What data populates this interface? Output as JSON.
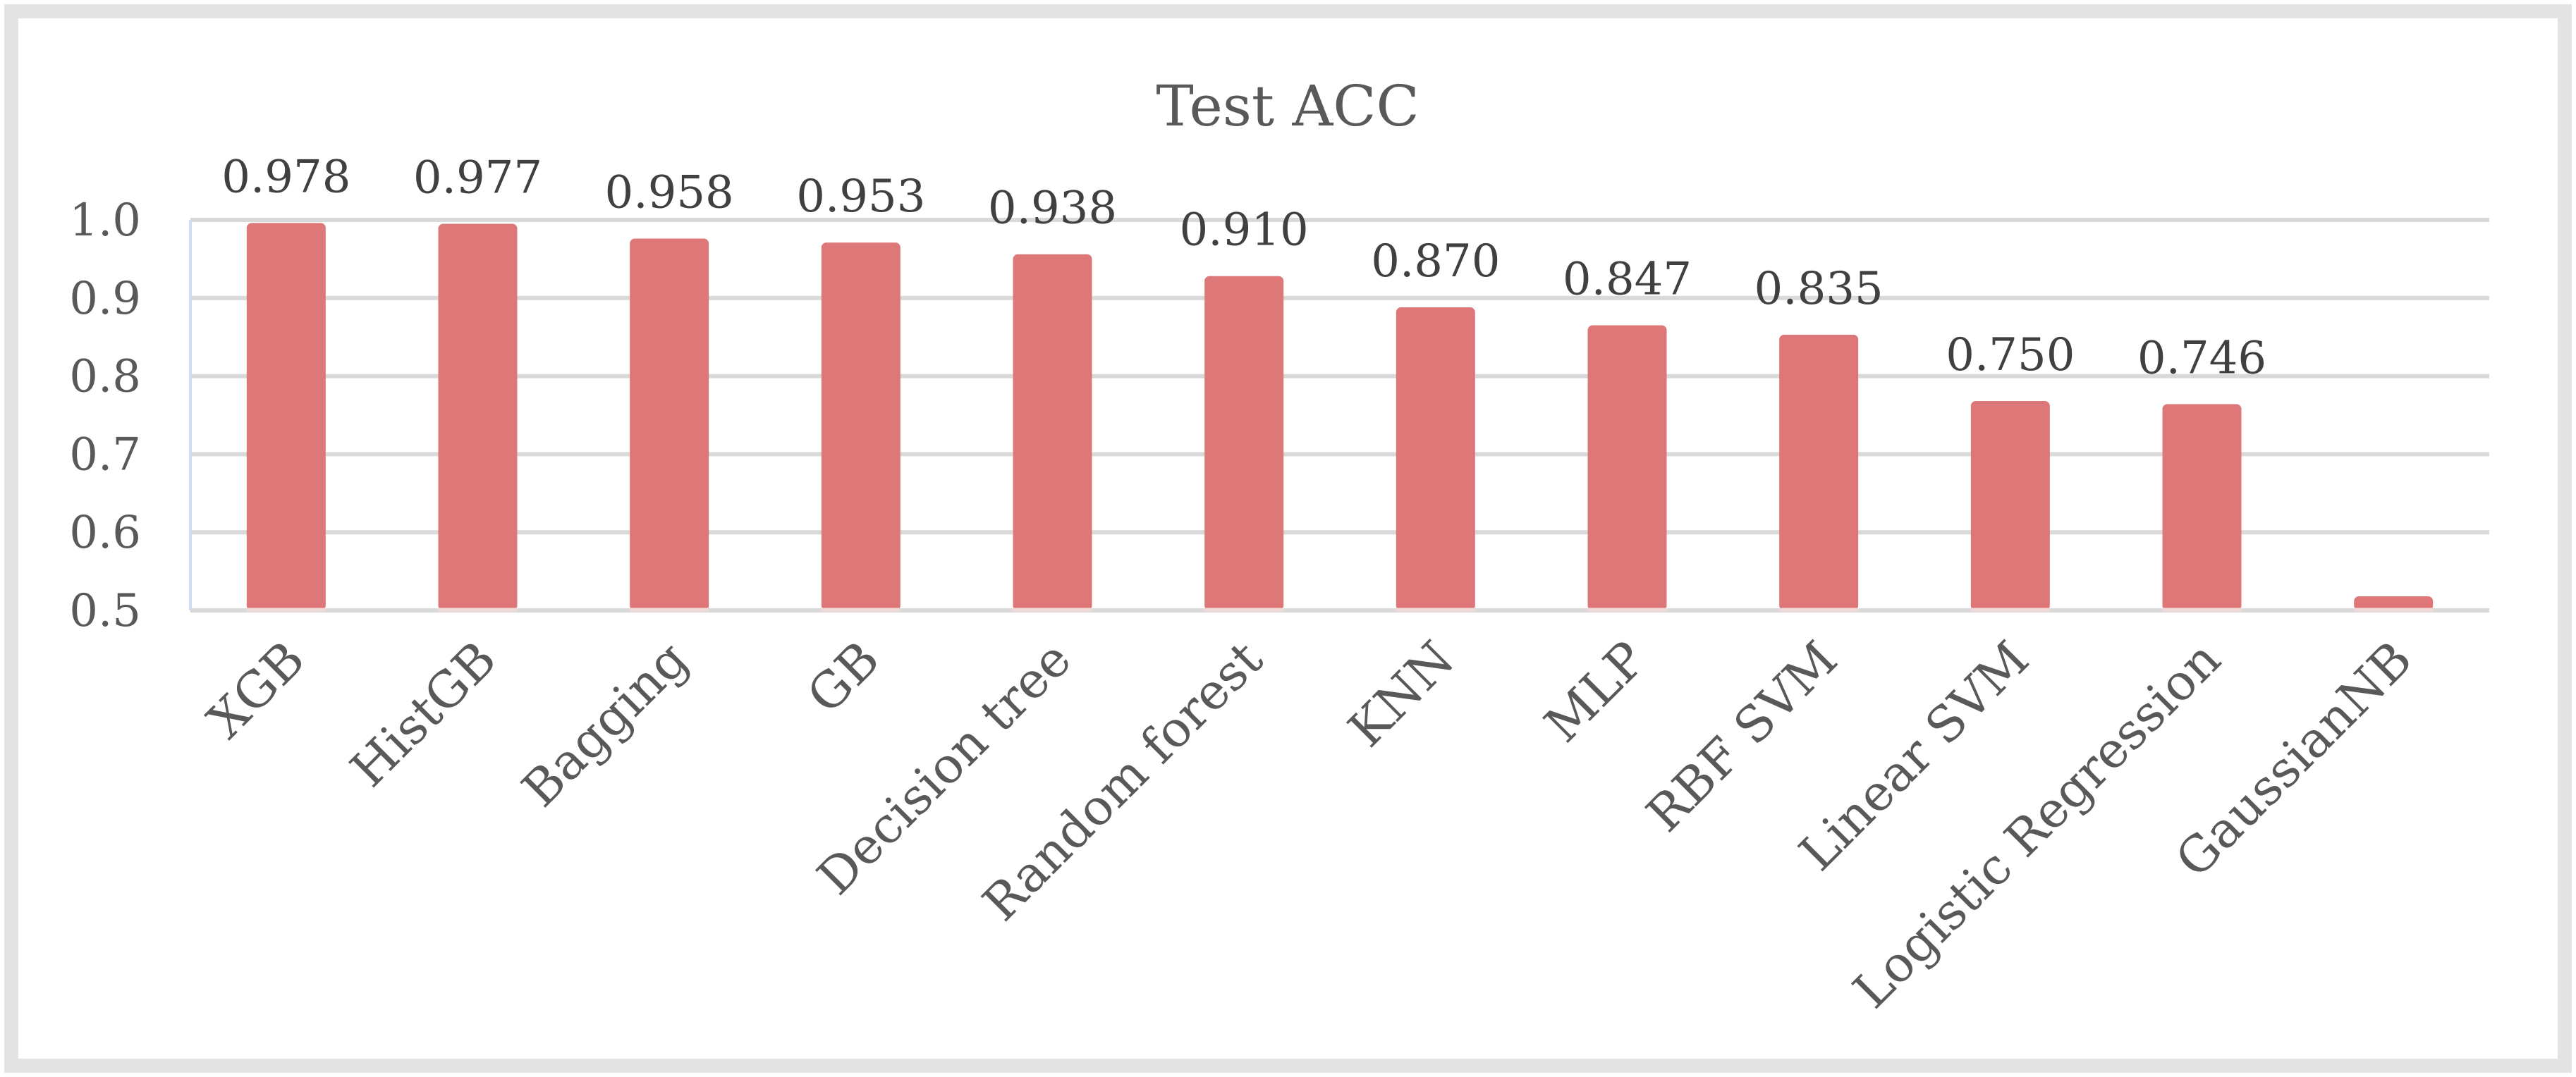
{
  "chart_data": {
    "type": "bar",
    "title": "Test ACC",
    "categories": [
      "XGB",
      "HistGB",
      "Bagging",
      "GB",
      "Decision tree",
      "Random forest",
      "KNN",
      "MLP",
      "RBF SVM",
      "Linear SVM",
      "Logistic Regression",
      "GaussianNB"
    ],
    "values": [
      0.978,
      0.977,
      0.958,
      0.953,
      0.938,
      0.91,
      0.87,
      0.847,
      0.835,
      0.75,
      0.746,
      0.5
    ],
    "data_labels": [
      "0.978",
      "0.977",
      "0.958",
      "0.953",
      "0.938",
      "0.910",
      "0.870",
      "0.847",
      "0.835",
      "0.750",
      "0.746",
      ""
    ],
    "ylim": [
      0.5,
      1.0
    ],
    "yticks": [
      "0.5",
      "0.6",
      "0.7",
      "0.8",
      "0.9",
      "1.0"
    ],
    "grid": true,
    "legend": "none",
    "bar_color": "#de7878",
    "xlabel": "",
    "ylabel": ""
  }
}
